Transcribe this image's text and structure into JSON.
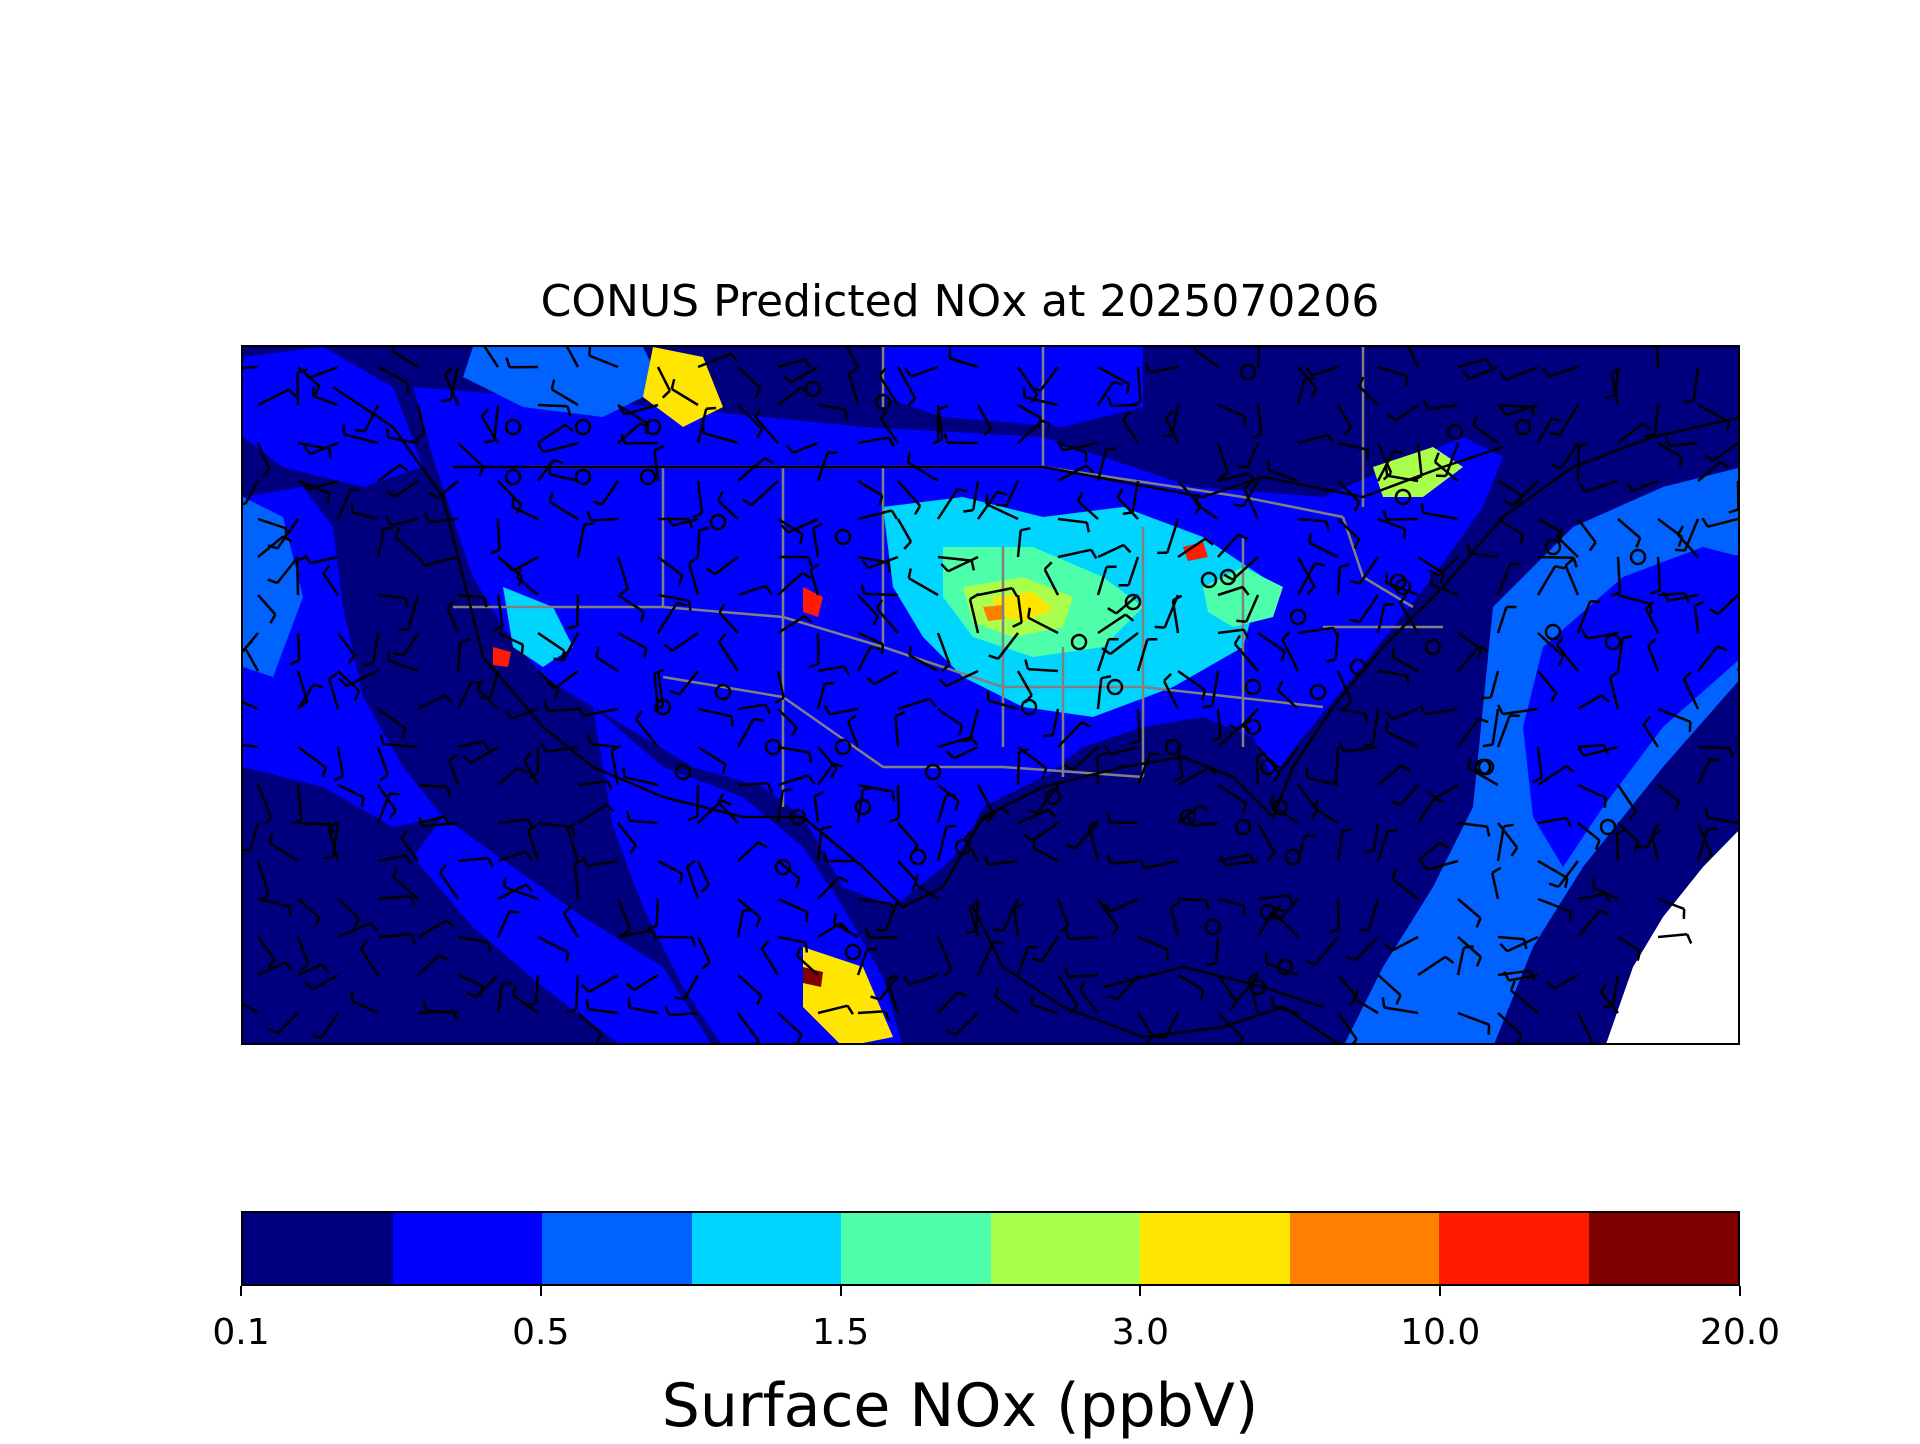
{
  "title": "CONUS Predicted NOx at 2025070206",
  "map": {
    "region": "CONUS",
    "field": "Surface NOx",
    "overlays": [
      "wind barbs",
      "state boundaries",
      "country boundaries",
      "coastlines",
      "calm wind circles"
    ]
  },
  "colorbar": {
    "label": "Surface NOx (ppbV)",
    "colors": [
      "#00007f",
      "#0000ff",
      "#0062ff",
      "#00d5ff",
      "#4dffaa",
      "#aaff4d",
      "#ffe600",
      "#ff7f00",
      "#ff1a00",
      "#7f0000"
    ],
    "ticks": [
      {
        "label": "0.1",
        "value": 0.1
      },
      {
        "label": "0.5",
        "value": 0.5
      },
      {
        "label": "1.5",
        "value": 1.5
      },
      {
        "label": "3.0",
        "value": 3.0
      },
      {
        "label": "10.0",
        "value": 10.0
      },
      {
        "label": "20.0",
        "value": 20.0
      }
    ]
  }
}
